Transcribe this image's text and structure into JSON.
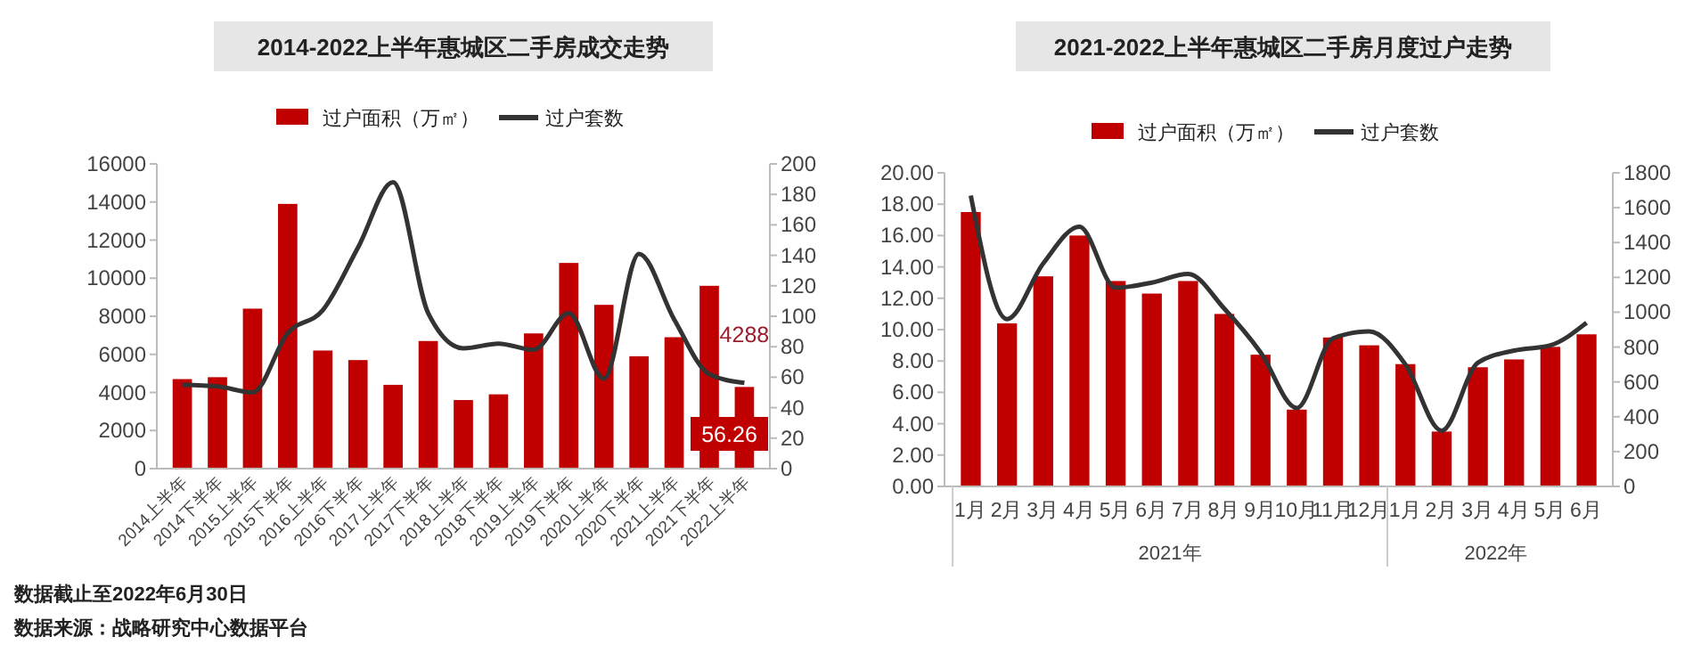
{
  "chart_data": [
    {
      "type": "bar",
      "title": "2014-2022上半年惠城区二手房成交走势",
      "legend": "top",
      "grid": false,
      "categories": [
        "2014上半年",
        "2014下半年",
        "2015上半年",
        "2015下半年",
        "2016上半年",
        "2016下半年",
        "2017上半年",
        "2017下半年",
        "2018上半年",
        "2018下半年",
        "2019上半年",
        "2019下半年",
        "2020上半年",
        "2020下半年",
        "2021上半年",
        "2021下半年",
        "2022上半年"
      ],
      "series": [
        {
          "name": "过户面积（万㎡）",
          "color": "#c00000",
          "values": [
            4700,
            4800,
            8400,
            13900,
            6200,
            5700,
            4400,
            6700,
            3600,
            3900,
            7100,
            10800,
            8600,
            5900,
            6900,
            9600,
            4288
          ],
          "value_labels": [
            null,
            null,
            null,
            null,
            null,
            null,
            null,
            null,
            null,
            null,
            null,
            null,
            null,
            null,
            null,
            null,
            "4288"
          ]
        },
        {
          "name": "过户套数",
          "type": "line",
          "axis": "y2",
          "color": "#333333",
          "values": [
            55,
            54,
            50,
            89,
            104,
            145,
            188,
            102,
            79,
            82,
            78,
            102,
            59,
            141,
            98,
            62,
            56.26
          ],
          "value_labels": [
            null,
            null,
            null,
            null,
            null,
            null,
            null,
            null,
            null,
            null,
            null,
            null,
            null,
            null,
            null,
            null,
            "56.26"
          ]
        }
      ],
      "ylim": [
        0,
        16000
      ],
      "yticks": [
        0,
        2000,
        4000,
        6000,
        8000,
        10000,
        12000,
        14000,
        16000
      ],
      "y2lim": [
        0,
        200
      ],
      "y2ticks": [
        0,
        20,
        40,
        60,
        80,
        100,
        120,
        140,
        160,
        180,
        200
      ],
      "annotations": [
        "数据截止至2022年6月30日",
        "数据来源：战略研究中心数据平台"
      ]
    },
    {
      "type": "bar",
      "title": "2021-2022上半年惠城区二手房月度过户走势",
      "legend": "top",
      "grid": false,
      "categories": [
        "1月",
        "2月",
        "3月",
        "4月",
        "5月",
        "6月",
        "7月",
        "8月",
        "9月",
        "10月",
        "11月",
        "12月",
        "1月",
        "2月",
        "3月",
        "4月",
        "5月",
        "6月"
      ],
      "series": [
        {
          "name": "过户面积（万㎡）",
          "color": "#c00000",
          "values": [
            17.5,
            10.4,
            13.4,
            16.0,
            13.1,
            12.3,
            13.1,
            11.0,
            8.4,
            4.9,
            9.5,
            9.0,
            7.8,
            3.5,
            7.6,
            8.1,
            8.9,
            9.7
          ]
        },
        {
          "name": "过户套数",
          "type": "line",
          "axis": "y2",
          "color": "#333333",
          "values": [
            1670,
            960,
            1280,
            1490,
            1140,
            1170,
            1220,
            1020,
            770,
            450,
            850,
            890,
            700,
            320,
            710,
            780,
            810,
            940
          ]
        }
      ],
      "ylim": [
        0,
        20
      ],
      "yticks": [
        {
          "value": 0,
          "label": "0.00"
        },
        {
          "value": 2,
          "label": "2.00"
        },
        {
          "value": 4,
          "label": "4.00"
        },
        {
          "value": 6,
          "label": "6.00"
        },
        {
          "value": 8,
          "label": "8.00"
        },
        {
          "value": 10,
          "label": "10.00"
        },
        {
          "value": 12,
          "label": "12.00"
        },
        {
          "value": 14,
          "label": "14.00"
        },
        {
          "value": 16,
          "label": "16.00"
        },
        {
          "value": 18,
          "label": "18.00"
        },
        {
          "value": 20,
          "label": "20.00"
        }
      ],
      "y2lim": [
        0,
        1800
      ],
      "y2ticks": [
        0,
        200,
        400,
        600,
        800,
        1000,
        1200,
        1400,
        1600,
        1800
      ],
      "annotations": [
        "2021年",
        "2022年"
      ]
    }
  ]
}
